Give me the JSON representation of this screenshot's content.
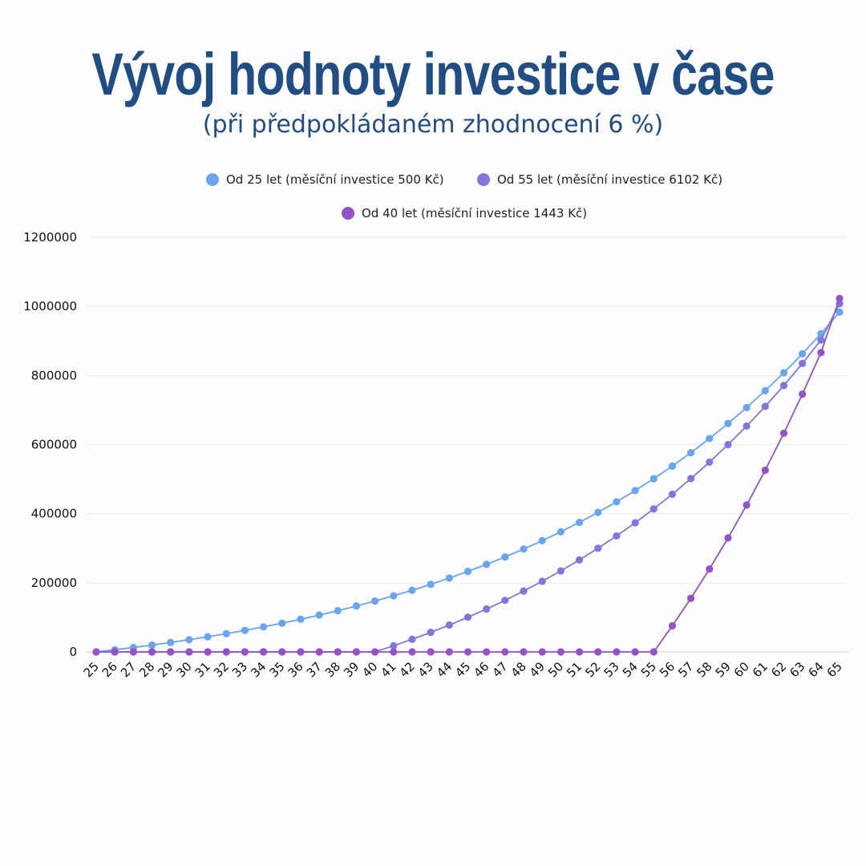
{
  "title": "Vývoj hodnoty investice v čase",
  "subtitle": "(při předpokládaném zhodnocení 6 %)",
  "chart_data": {
    "type": "line",
    "ylim": [
      0,
      1200000
    ],
    "y_ticks": [
      "0",
      "200000",
      "400000",
      "600000",
      "800000",
      "1000000",
      "1200000"
    ],
    "grid": true,
    "legend_position": "top",
    "x": [
      "25",
      "26",
      "27",
      "28",
      "29",
      "30",
      "31",
      "32",
      "33",
      "34",
      "35",
      "36",
      "37",
      "38",
      "39",
      "40",
      "41",
      "42",
      "43",
      "44",
      "45",
      "46",
      "47",
      "48",
      "49",
      "50",
      "51",
      "52",
      "53",
      "54",
      "55",
      "56",
      "57",
      "58",
      "59",
      "60",
      "61",
      "62",
      "63",
      "64",
      "65"
    ],
    "series": [
      {
        "name": "Od 25 let (měsíční investice 500 Kč)",
        "color": "#67a4f1",
        "values": [
          0,
          6200,
          12700,
          19800,
          27300,
          35300,
          43800,
          52800,
          62300,
          72400,
          83100,
          94500,
          106500,
          119300,
          132800,
          147200,
          162400,
          178500,
          195600,
          213700,
          232900,
          253300,
          274900,
          297800,
          322000,
          347700,
          375000,
          403900,
          434500,
          467000,
          501400,
          537900,
          576600,
          617600,
          661100,
          707200,
          756100,
          807900,
          862800,
          921000,
          983500
        ]
      },
      {
        "name": "Od 55 let (měsíční investice 6102 Kč)",
        "color": "#7f77e0",
        "values": [
          0,
          0,
          0,
          0,
          0,
          0,
          0,
          0,
          0,
          0,
          0,
          0,
          0,
          0,
          0,
          0,
          17800,
          36600,
          56600,
          77800,
          100300,
          124100,
          149300,
          176100,
          204400,
          234500,
          266300,
          300100,
          335800,
          373700,
          413900,
          456500,
          501600,
          549400,
          600100,
          653800,
          710700,
          771100,
          835000,
          902800,
          1008000
        ]
      },
      {
        "name": "Od 40 let (měsíční investice 1443 Kč)",
        "color": "#9650c8",
        "values": [
          0,
          0,
          0,
          0,
          0,
          0,
          0,
          0,
          0,
          0,
          0,
          0,
          0,
          0,
          0,
          0,
          0,
          0,
          0,
          0,
          0,
          0,
          0,
          0,
          0,
          0,
          0,
          0,
          0,
          0,
          0,
          75400,
          155300,
          240000,
          329800,
          425000,
          525900,
          632800,
          746200,
          866400,
          1023000
        ]
      }
    ]
  }
}
